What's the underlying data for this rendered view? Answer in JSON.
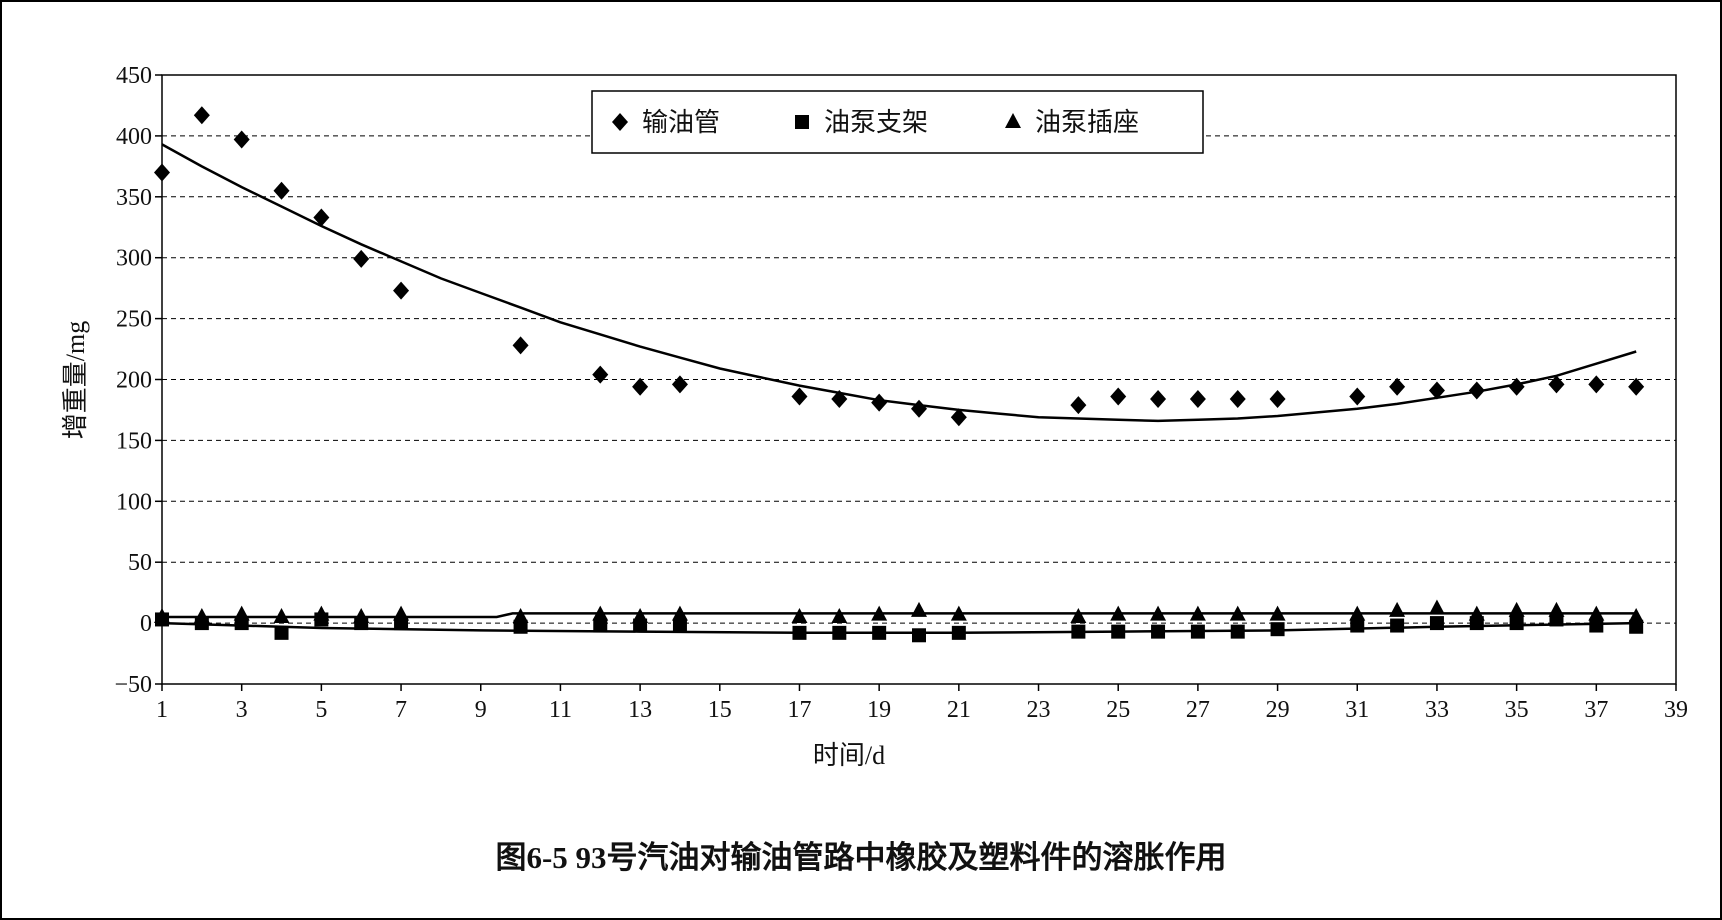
{
  "caption": "图6-5    93号汽油对输油管路中橡胶及塑料件的溶胀作用",
  "chart_data": {
    "type": "scatter",
    "xlabel": "时间/d",
    "ylabel": "增重量/mg",
    "xlim": [
      1,
      39
    ],
    "ylim": [
      -50,
      450
    ],
    "xticks": [
      1,
      3,
      5,
      7,
      9,
      11,
      13,
      15,
      17,
      19,
      21,
      23,
      25,
      27,
      29,
      31,
      33,
      35,
      37,
      39
    ],
    "yticks": [
      -50,
      0,
      50,
      100,
      150,
      200,
      250,
      300,
      350,
      400,
      450
    ],
    "ytick_labels": [
      "−50",
      "0",
      "50",
      "100",
      "150",
      "200",
      "250",
      "300",
      "350",
      "400",
      "450"
    ],
    "grid": "horizontal-dashed",
    "legend_position": "top-center",
    "series": [
      {
        "name": "输油管",
        "marker": "diamond",
        "x": [
          1,
          2,
          3,
          4,
          5,
          6,
          7,
          10,
          12,
          13,
          14,
          17,
          18,
          19,
          20,
          21,
          24,
          25,
          26,
          27,
          28,
          29,
          31,
          32,
          33,
          34,
          35,
          36,
          37,
          38
        ],
        "y": [
          370,
          417,
          397,
          355,
          333,
          299,
          273,
          228,
          204,
          194,
          196,
          186,
          184,
          181,
          176,
          169,
          179,
          186,
          184,
          184,
          184,
          184,
          186,
          194,
          191,
          191,
          194,
          196,
          196,
          194
        ],
        "trend": {
          "type": "polynomial",
          "x": [
            1,
            2,
            3,
            4,
            5,
            6,
            7,
            8,
            9,
            10,
            11,
            12,
            13,
            14,
            15,
            16,
            17,
            18,
            19,
            20,
            21,
            22,
            23,
            24,
            25,
            26,
            27,
            28,
            29,
            30,
            31,
            32,
            33,
            34,
            35,
            36,
            37,
            38
          ],
          "y": [
            393,
            375,
            358,
            342,
            326,
            311,
            297,
            283,
            271,
            259,
            247,
            237,
            227,
            218,
            209,
            202,
            195,
            189,
            183,
            179,
            175,
            172,
            169,
            168,
            167,
            166,
            167,
            168,
            170,
            173,
            176,
            180,
            185,
            190,
            196,
            203,
            213,
            223
          ]
        }
      },
      {
        "name": "油泵支架",
        "marker": "square",
        "x": [
          1,
          2,
          3,
          4,
          5,
          6,
          7,
          10,
          12,
          13,
          14,
          17,
          18,
          19,
          20,
          21,
          24,
          25,
          26,
          27,
          28,
          29,
          31,
          32,
          33,
          34,
          35,
          36,
          37,
          38
        ],
        "y": [
          3,
          0,
          0,
          -8,
          3,
          0,
          0,
          -3,
          -2,
          -2,
          -2,
          -8,
          -8,
          -8,
          -10,
          -8,
          -7,
          -7,
          -7,
          -7,
          -7,
          -5,
          -2,
          -2,
          0,
          0,
          0,
          3,
          -2,
          -3
        ],
        "trend": {
          "type": "polynomial",
          "x": [
            1,
            5,
            9,
            13,
            17,
            21,
            25,
            29,
            33,
            38
          ],
          "y": [
            0,
            -4,
            -6,
            -7,
            -8,
            -8,
            -7,
            -6,
            -3,
            0
          ]
        }
      },
      {
        "name": "油泵插座",
        "marker": "triangle",
        "x": [
          1,
          2,
          3,
          4,
          5,
          6,
          7,
          10,
          12,
          13,
          14,
          17,
          18,
          19,
          20,
          21,
          24,
          25,
          26,
          27,
          28,
          29,
          31,
          32,
          33,
          34,
          35,
          36,
          37,
          38
        ],
        "y": [
          5,
          5,
          7,
          5,
          7,
          5,
          7,
          5,
          7,
          5,
          7,
          5,
          5,
          7,
          10,
          7,
          5,
          7,
          7,
          7,
          7,
          7,
          7,
          10,
          12,
          7,
          10,
          10,
          7,
          5
        ],
        "trend": {
          "type": "line",
          "x": [
            1,
            9.4,
            9.8,
            38
          ],
          "y": [
            5,
            5,
            8,
            8
          ]
        }
      }
    ]
  }
}
